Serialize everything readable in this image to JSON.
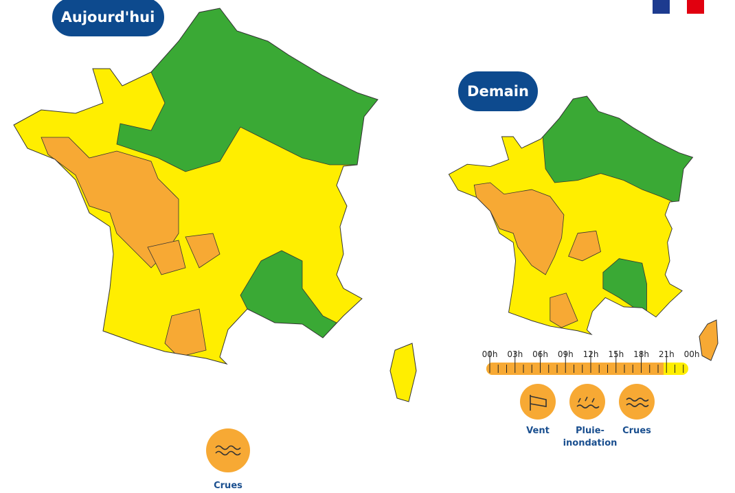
{
  "today": {
    "label": "Aujourd'hui",
    "hazards": [
      {
        "label_lines": [
          "Crues"
        ]
      }
    ]
  },
  "tomorrow": {
    "label": "Demain",
    "timeline": [
      "00h",
      "03h",
      "06h",
      "09h",
      "12h",
      "15h",
      "18h",
      "21h",
      "00h"
    ],
    "hazards": [
      {
        "label_lines": [
          "Vent"
        ]
      },
      {
        "label_lines": [
          "Pluie-",
          "inondation"
        ]
      },
      {
        "label_lines": [
          "Crues"
        ]
      }
    ]
  }
}
